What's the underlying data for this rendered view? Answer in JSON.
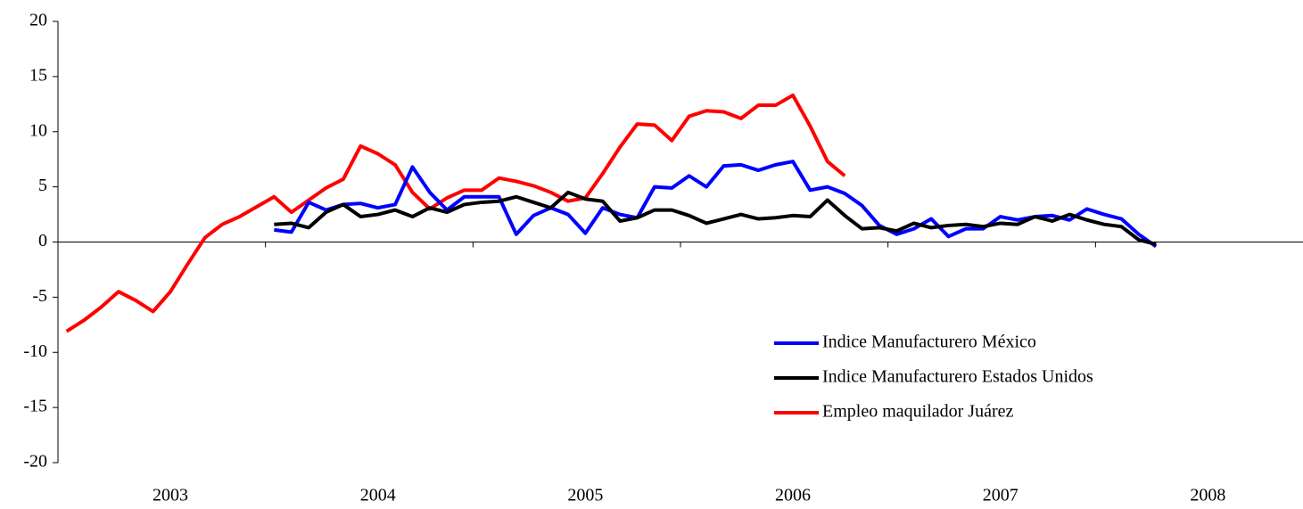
{
  "chart_data": {
    "type": "line",
    "categories": [
      null,
      null,
      null,
      null,
      null,
      null,
      "2003",
      null,
      null,
      null,
      null,
      null,
      null,
      null,
      null,
      null,
      null,
      null,
      "2004",
      null,
      null,
      null,
      null,
      null,
      null,
      null,
      null,
      null,
      null,
      null,
      "2005",
      null,
      null,
      null,
      null,
      null,
      null,
      null,
      null,
      null,
      null,
      null,
      "2006",
      null,
      null,
      null,
      null,
      null,
      null,
      null,
      null,
      null,
      null,
      null,
      "2007",
      null,
      null,
      null,
      null,
      null,
      null,
      null,
      null,
      null,
      null,
      null,
      "2008",
      null,
      null,
      null,
      null,
      null
    ],
    "series": [
      {
        "name": "Indice Manufacturero México",
        "color": "#0000ff",
        "values": [
          null,
          null,
          null,
          null,
          null,
          null,
          null,
          null,
          null,
          null,
          null,
          null,
          1.1,
          0.9,
          3.6,
          2.9,
          3.4,
          3.5,
          3.1,
          3.4,
          6.8,
          4.5,
          2.9,
          4.1,
          4.1,
          4.1,
          0.7,
          2.4,
          3.1,
          2.5,
          0.8,
          3.1,
          2.5,
          2.2,
          5.0,
          4.9,
          6.0,
          5.0,
          6.9,
          7.0,
          6.5,
          7.0,
          7.3,
          4.7,
          5.0,
          4.4,
          3.3,
          1.5,
          0.7,
          1.2,
          2.1,
          0.5,
          1.2,
          1.2,
          2.3,
          2.0,
          2.3,
          2.4,
          2.0,
          3.0,
          2.5,
          2.1,
          0.7,
          -0.4,
          null,
          null,
          null,
          null,
          null,
          null,
          null,
          null
        ]
      },
      {
        "name": "Indice Manufacturero Estados Unidos",
        "color": "#000000",
        "values": [
          null,
          null,
          null,
          null,
          null,
          null,
          null,
          null,
          null,
          null,
          null,
          null,
          1.6,
          1.7,
          1.3,
          2.7,
          3.4,
          2.3,
          2.5,
          2.9,
          2.3,
          3.1,
          2.7,
          3.4,
          3.6,
          3.7,
          4.1,
          3.6,
          3.1,
          4.5,
          3.9,
          3.7,
          1.9,
          2.2,
          2.9,
          2.9,
          2.4,
          1.7,
          2.1,
          2.5,
          2.1,
          2.2,
          2.4,
          2.3,
          3.8,
          2.4,
          1.2,
          1.3,
          1.0,
          1.7,
          1.3,
          1.5,
          1.6,
          1.4,
          1.7,
          1.6,
          2.3,
          1.9,
          2.5,
          2.0,
          1.6,
          1.4,
          0.2,
          -0.2,
          null,
          null,
          null,
          null,
          null,
          null,
          null,
          null
        ]
      },
      {
        "name": "Empleo maquilador Juárez",
        "color": "#ff0000",
        "values": [
          -8.1,
          -7.1,
          -5.9,
          -4.5,
          -5.3,
          -6.3,
          -4.5,
          -2.0,
          0.4,
          1.6,
          2.3,
          3.2,
          4.1,
          2.7,
          3.8,
          4.9,
          5.7,
          8.7,
          8.0,
          7.0,
          4.5,
          3.0,
          4.0,
          4.7,
          4.7,
          5.8,
          5.5,
          5.1,
          4.5,
          3.7,
          4.0,
          6.2,
          8.6,
          10.7,
          10.6,
          9.2,
          11.4,
          11.9,
          11.8,
          11.2,
          12.4,
          12.4,
          13.3,
          10.5,
          7.3,
          6.0,
          null,
          null,
          null,
          null,
          null,
          null,
          null,
          null,
          null,
          null,
          null,
          null,
          null,
          null,
          null,
          null,
          null,
          null,
          null,
          null,
          null,
          null,
          null,
          null,
          null,
          null
        ]
      }
    ],
    "ylim": [
      -20,
      20
    ],
    "yticks": [
      -20,
      -15,
      -10,
      -5,
      0,
      5,
      10,
      15,
      20
    ],
    "grid": false,
    "legend": "center-right"
  }
}
